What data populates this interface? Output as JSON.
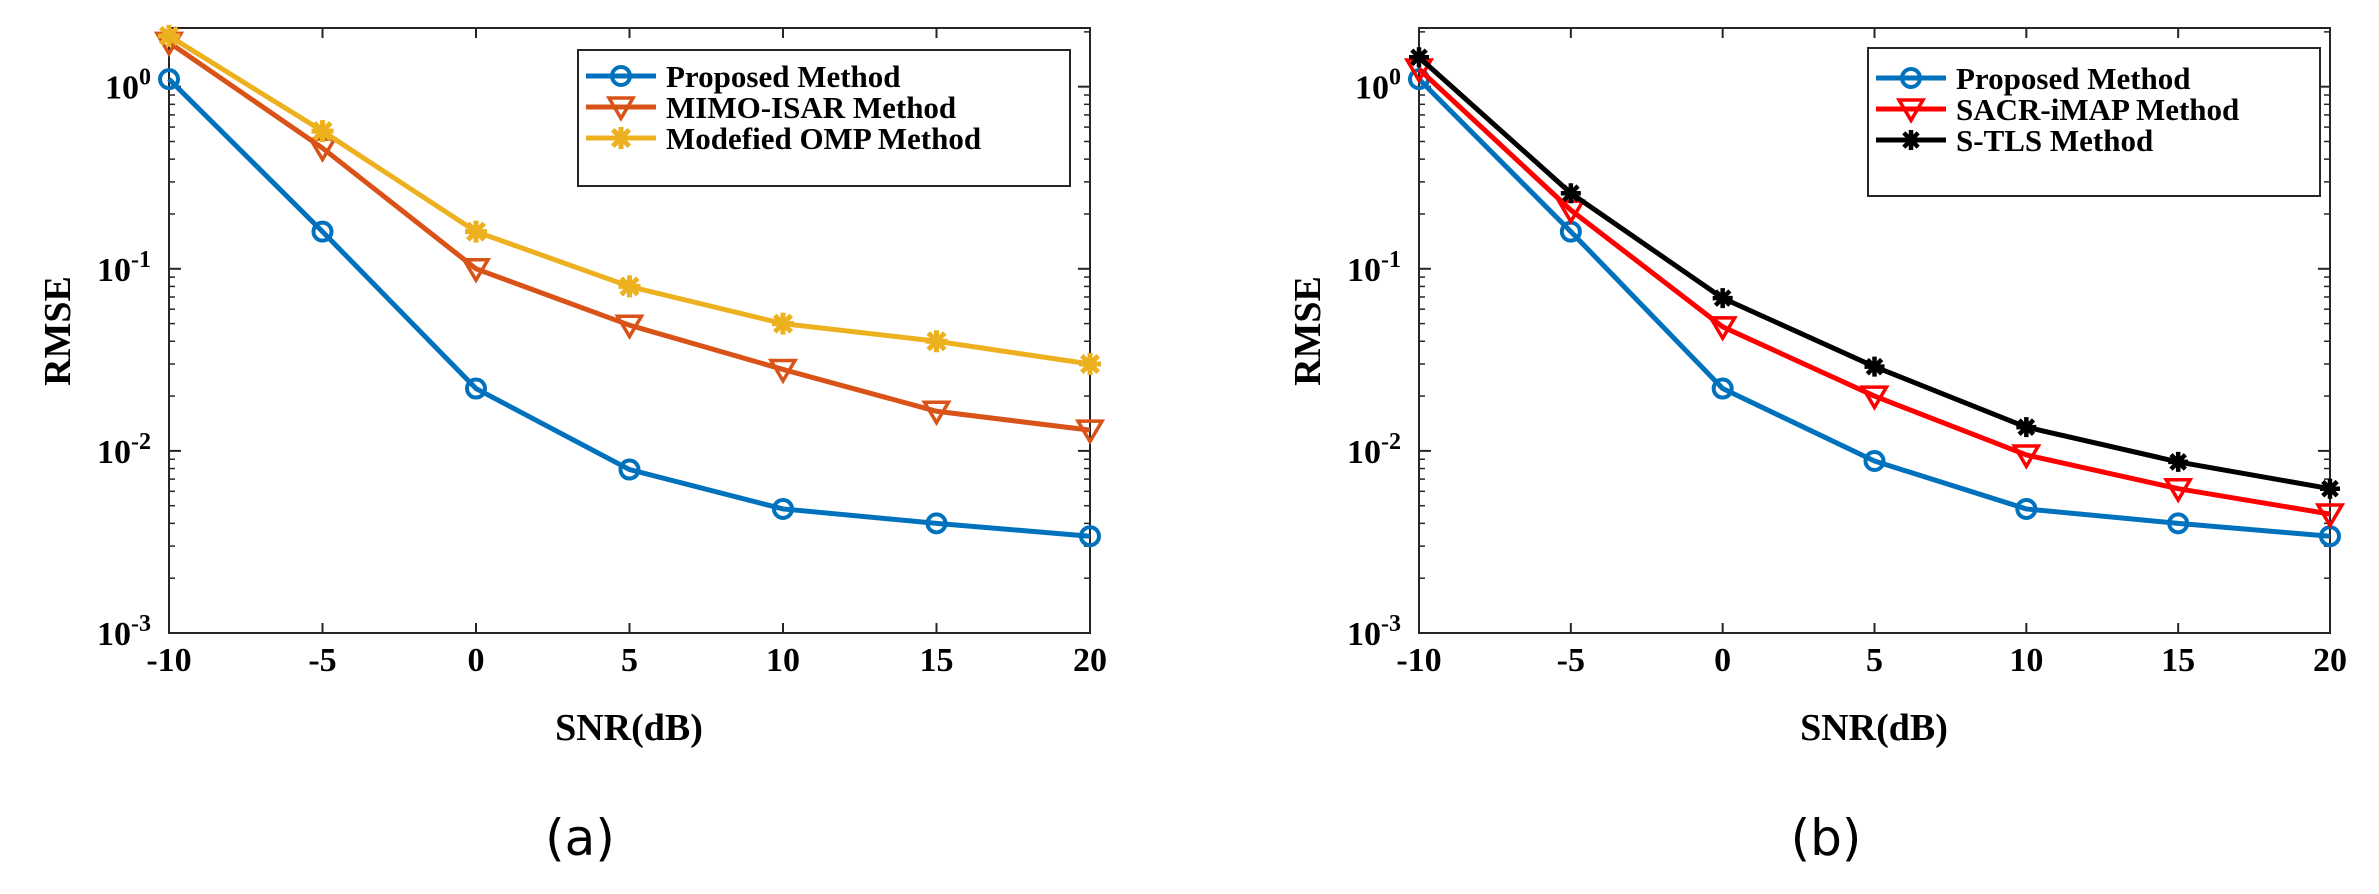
{
  "chart_data": [
    {
      "type": "line",
      "caption": "(a)",
      "xlabel": "SNR(dB)",
      "ylabel": "RMSE",
      "yscale": "log",
      "x": [
        -10,
        -5,
        0,
        5,
        10,
        15,
        20
      ],
      "xticks": [
        "-10",
        "-5",
        "0",
        "5",
        "10",
        "15",
        "20"
      ],
      "yticks": [
        {
          "base": "10",
          "exp": "0"
        },
        {
          "base": "10",
          "exp": "-1"
        },
        {
          "base": "10",
          "exp": "-2"
        },
        {
          "base": "10",
          "exp": "-3"
        }
      ],
      "legend_position": "top-right",
      "series": [
        {
          "name": "Proposed Method",
          "color": "#0072BD",
          "marker": "circle",
          "values": [
            1.1,
            0.16,
            0.022,
            0.0079,
            0.0048,
            0.004,
            0.0034
          ]
        },
        {
          "name": "MIMO-ISAR Method",
          "color": "#D95319",
          "marker": "triangle-down",
          "values": [
            1.75,
            0.46,
            0.1,
            0.049,
            0.028,
            0.0165,
            0.013
          ]
        },
        {
          "name": "Modefied OMP Method",
          "color": "#EDB120",
          "marker": "star",
          "values": [
            1.9,
            0.57,
            0.16,
            0.08,
            0.05,
            0.04,
            0.03
          ]
        }
      ]
    },
    {
      "type": "line",
      "caption": "(b)",
      "xlabel": "SNR(dB)",
      "ylabel": "RMSE",
      "yscale": "log",
      "x": [
        -10,
        -5,
        0,
        5,
        10,
        15,
        20
      ],
      "xticks": [
        "-10",
        "-5",
        "0",
        "5",
        "10",
        "15",
        "20"
      ],
      "yticks": [
        {
          "base": "10",
          "exp": "0"
        },
        {
          "base": "10",
          "exp": "-1"
        },
        {
          "base": "10",
          "exp": "-2"
        },
        {
          "base": "10",
          "exp": "-3"
        }
      ],
      "legend_position": "top-right",
      "series": [
        {
          "name": "Proposed Method",
          "color": "#0072BD",
          "marker": "circle",
          "values": [
            1.1,
            0.16,
            0.022,
            0.0088,
            0.0048,
            0.004,
            0.0034
          ]
        },
        {
          "name": "SACR-iMAP Method",
          "color": "#FF0000",
          "marker": "triangle-down",
          "values": [
            1.25,
            0.21,
            0.048,
            0.02,
            0.0095,
            0.0062,
            0.0045
          ]
        },
        {
          "name": "S-TLS Method",
          "color": "#000000",
          "marker": "asterisk",
          "values": [
            1.45,
            0.26,
            0.069,
            0.029,
            0.0135,
            0.0087,
            0.0062
          ]
        }
      ]
    }
  ]
}
